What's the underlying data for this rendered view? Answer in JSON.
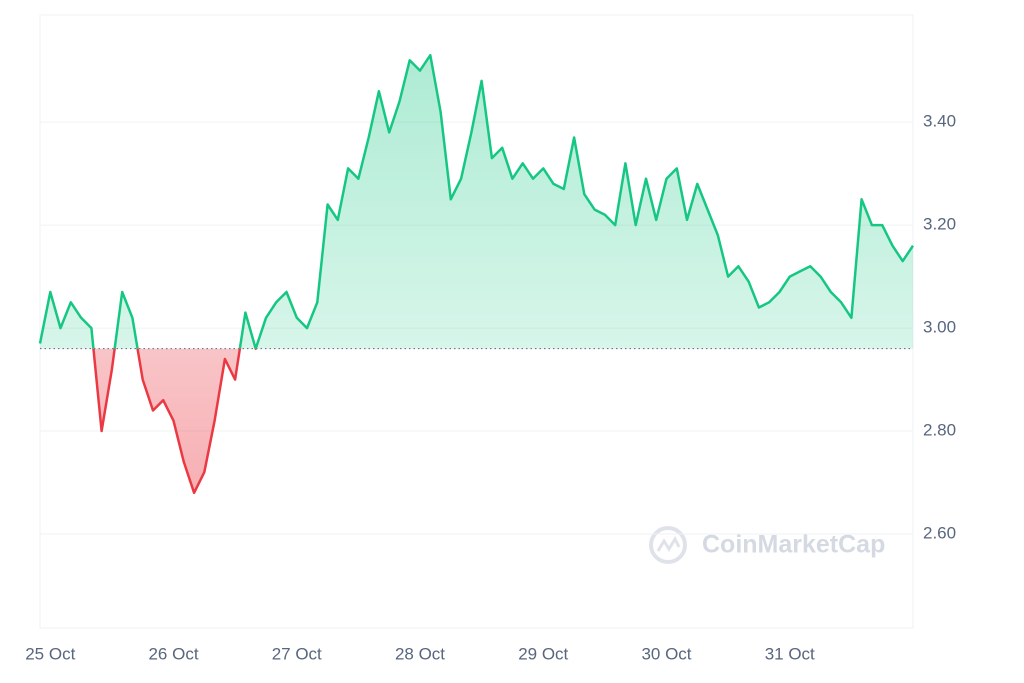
{
  "chart_data": {
    "type": "baseline-line",
    "categories": [
      null,
      "25 Oct",
      null,
      null,
      null,
      null,
      null,
      null,
      null,
      null,
      null,
      null,
      null,
      "26 Oct",
      null,
      null,
      null,
      null,
      null,
      null,
      null,
      null,
      null,
      null,
      null,
      "27 Oct",
      null,
      null,
      null,
      null,
      null,
      null,
      null,
      null,
      null,
      null,
      null,
      "28 Oct",
      null,
      null,
      null,
      null,
      null,
      null,
      null,
      null,
      null,
      null,
      null,
      "29 Oct",
      null,
      null,
      null,
      null,
      null,
      null,
      null,
      null,
      null,
      null,
      null,
      "30 Oct",
      null,
      null,
      null,
      null,
      null,
      null,
      null,
      null,
      null,
      null,
      null,
      "31 Oct",
      null,
      null,
      null,
      null,
      null,
      null,
      null,
      null,
      null,
      null,
      null,
      null
    ],
    "values": [
      2.97,
      3.07,
      3.0,
      3.05,
      3.02,
      3.0,
      2.8,
      2.92,
      3.07,
      3.02,
      2.9,
      2.84,
      2.86,
      2.82,
      2.74,
      2.68,
      2.72,
      2.82,
      2.94,
      2.9,
      3.03,
      2.96,
      3.02,
      3.05,
      3.07,
      3.02,
      3.0,
      3.05,
      3.24,
      3.21,
      3.31,
      3.29,
      3.37,
      3.46,
      3.38,
      3.44,
      3.52,
      3.5,
      3.53,
      3.42,
      3.25,
      3.29,
      3.38,
      3.48,
      3.33,
      3.35,
      3.29,
      3.32,
      3.29,
      3.31,
      3.28,
      3.27,
      3.37,
      3.26,
      3.23,
      3.22,
      3.2,
      3.32,
      3.2,
      3.29,
      3.21,
      3.29,
      3.31,
      3.21,
      3.28,
      3.23,
      3.18,
      3.1,
      3.12,
      3.09,
      3.04,
      3.05,
      3.07,
      3.1,
      3.11,
      3.12,
      3.1,
      3.07,
      3.05,
      3.02,
      3.25,
      3.2,
      3.2,
      3.16,
      3.13,
      3.16
    ],
    "baseline": 2.96,
    "color_up": "#16c784",
    "color_down": "#ea3943",
    "ylim": [
      2.4175,
      3.608
    ],
    "yticks": [
      {
        "value": 2.6,
        "label": "2.60"
      },
      {
        "value": 2.8,
        "label": "2.80"
      },
      {
        "value": 3,
        "label": "3.00"
      },
      {
        "value": 3.2,
        "label": "3.20"
      },
      {
        "value": 3.4,
        "label": "3.40"
      }
    ],
    "grid": true,
    "watermark": "CoinMarketCap"
  }
}
